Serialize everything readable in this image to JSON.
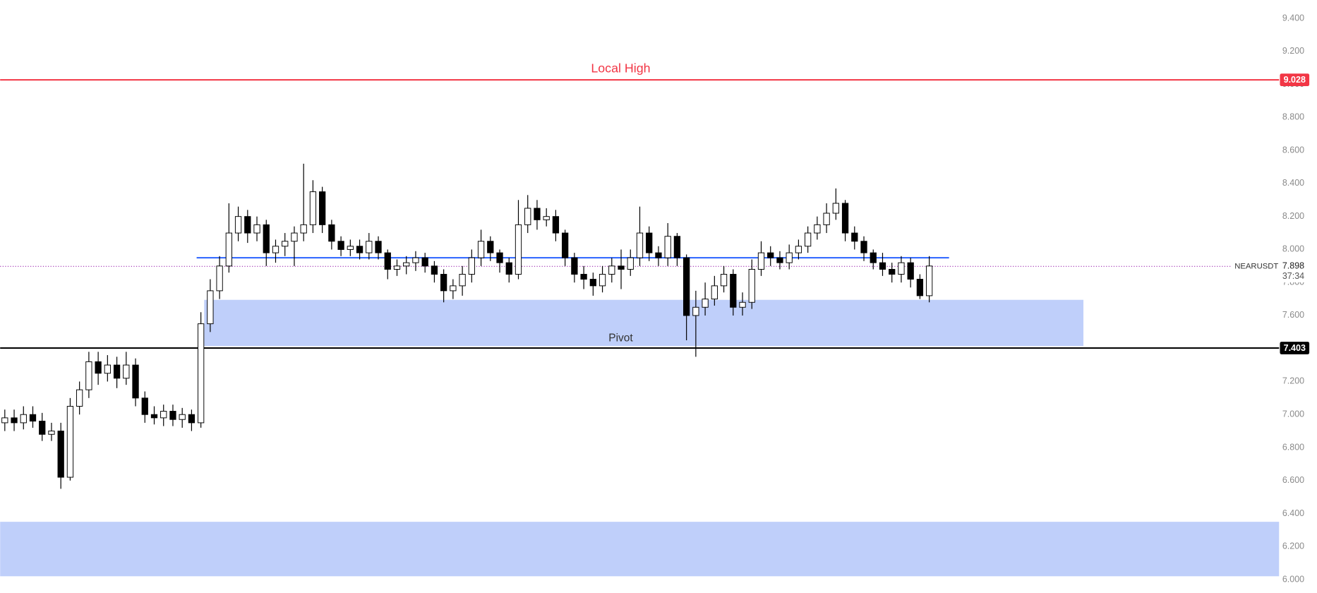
{
  "chart_data": {
    "type": "candlestick",
    "open": [
      6.95,
      6.98,
      6.95,
      7.0,
      6.96,
      6.88,
      6.9,
      6.62,
      7.05,
      7.15,
      7.32,
      7.25,
      7.3,
      7.22,
      7.3,
      7.1,
      7.0,
      6.98,
      7.02,
      6.97,
      7.0,
      6.95,
      7.55,
      7.75,
      7.9,
      8.1,
      8.2,
      8.1,
      8.15,
      7.98,
      8.02,
      8.05,
      8.1,
      8.15,
      8.35,
      8.15,
      8.05,
      8.0,
      8.02,
      7.98,
      8.05,
      7.98,
      7.88,
      7.9,
      7.92,
      7.95,
      7.9,
      7.85,
      7.75,
      7.78,
      7.85,
      7.95,
      8.05,
      7.98,
      7.92,
      7.85,
      8.15,
      8.25,
      8.18,
      8.2,
      8.1,
      7.95,
      7.85,
      7.82,
      7.78,
      7.85,
      7.9,
      7.88,
      7.95,
      8.1,
      7.98,
      7.95,
      8.08,
      7.95,
      7.6,
      7.65,
      7.7,
      7.78,
      7.85,
      7.65,
      7.68,
      7.88,
      7.98,
      7.95,
      7.92,
      7.98,
      8.02,
      8.1,
      8.15,
      8.22,
      8.28,
      8.1,
      8.05,
      7.98,
      7.92,
      7.88,
      7.85,
      7.92,
      7.82,
      7.72
    ],
    "high": [
      7.03,
      7.03,
      7.05,
      7.05,
      7.01,
      6.95,
      6.95,
      7.1,
      7.2,
      7.38,
      7.38,
      7.36,
      7.35,
      7.38,
      7.34,
      7.14,
      7.05,
      7.06,
      7.06,
      7.04,
      7.03,
      7.62,
      7.82,
      7.96,
      8.28,
      8.26,
      8.24,
      8.2,
      8.18,
      8.06,
      8.1,
      8.14,
      8.52,
      8.42,
      8.38,
      8.18,
      8.08,
      8.06,
      8.06,
      8.1,
      8.08,
      8.0,
      7.94,
      7.96,
      7.99,
      7.98,
      7.93,
      7.88,
      7.82,
      7.9,
      8.0,
      8.12,
      8.08,
      8.0,
      7.95,
      8.3,
      8.33,
      8.3,
      8.25,
      8.24,
      8.12,
      7.98,
      7.9,
      7.86,
      7.9,
      7.95,
      8.0,
      8.0,
      8.26,
      8.14,
      8.02,
      8.16,
      8.1,
      7.97,
      7.75,
      7.8,
      7.84,
      7.9,
      7.88,
      7.74,
      7.94,
      8.05,
      8.02,
      7.99,
      8.03,
      8.06,
      8.14,
      8.2,
      8.28,
      8.37,
      8.3,
      8.14,
      8.08,
      8.0,
      7.98,
      7.92,
      7.96,
      7.95,
      7.85,
      7.96
    ],
    "low": [
      6.9,
      6.9,
      6.91,
      6.92,
      6.84,
      6.84,
      6.55,
      6.6,
      7.0,
      7.1,
      7.18,
      7.2,
      7.16,
      7.18,
      7.05,
      6.95,
      6.94,
      6.93,
      6.93,
      6.92,
      6.9,
      6.92,
      7.5,
      7.7,
      7.86,
      8.05,
      8.04,
      8.05,
      7.9,
      7.92,
      7.96,
      7.9,
      8.05,
      8.1,
      8.1,
      8.0,
      7.96,
      7.96,
      7.94,
      7.94,
      7.94,
      7.82,
      7.84,
      7.85,
      7.87,
      7.86,
      7.8,
      7.68,
      7.7,
      7.72,
      7.8,
      7.9,
      7.93,
      7.86,
      7.8,
      7.82,
      8.1,
      8.12,
      8.14,
      8.05,
      7.9,
      7.8,
      7.76,
      7.72,
      7.74,
      7.8,
      7.76,
      7.84,
      7.9,
      7.93,
      7.9,
      7.9,
      7.9,
      7.45,
      7.35,
      7.6,
      7.66,
      7.74,
      7.6,
      7.6,
      7.64,
      7.84,
      7.9,
      7.88,
      7.88,
      7.94,
      7.98,
      8.06,
      8.1,
      8.18,
      8.05,
      8.0,
      7.93,
      7.88,
      7.84,
      7.8,
      7.8,
      7.77,
      7.7,
      7.68
    ],
    "close": [
      6.98,
      6.95,
      7.0,
      6.96,
      6.88,
      6.9,
      6.62,
      7.05,
      7.15,
      7.32,
      7.25,
      7.3,
      7.22,
      7.3,
      7.1,
      7.0,
      6.98,
      7.02,
      6.97,
      7.0,
      6.95,
      7.55,
      7.75,
      7.9,
      8.1,
      8.2,
      8.1,
      8.15,
      7.98,
      8.02,
      8.05,
      8.1,
      8.15,
      8.35,
      8.15,
      8.05,
      8.0,
      8.02,
      7.98,
      8.05,
      7.98,
      7.88,
      7.9,
      7.92,
      7.95,
      7.9,
      7.85,
      7.75,
      7.78,
      7.85,
      7.95,
      8.05,
      7.98,
      7.92,
      7.85,
      8.15,
      8.25,
      8.18,
      8.2,
      8.1,
      7.95,
      7.85,
      7.82,
      7.78,
      7.85,
      7.9,
      7.88,
      7.95,
      8.1,
      7.98,
      7.95,
      8.08,
      7.95,
      7.6,
      7.65,
      7.7,
      7.78,
      7.85,
      7.65,
      7.68,
      7.88,
      7.98,
      7.95,
      7.92,
      7.98,
      8.02,
      8.1,
      8.15,
      8.22,
      8.28,
      8.1,
      8.05,
      7.98,
      7.92,
      7.88,
      7.85,
      7.92,
      7.82,
      7.72,
      7.9
    ],
    "up_color": "#ffffff",
    "down_color": "#000000",
    "ylim": [
      6.0,
      9.4
    ],
    "yticks": [
      {
        "value": 6.0,
        "label": "6.000"
      },
      {
        "value": 6.2,
        "label": "6.200"
      },
      {
        "value": 6.4,
        "label": "6.400"
      },
      {
        "value": 6.6,
        "label": "6.600"
      },
      {
        "value": 6.8,
        "label": "6.800"
      },
      {
        "value": 7.0,
        "label": "7.000"
      },
      {
        "value": 7.2,
        "label": "7.200"
      },
      {
        "value": 7.4,
        "label": "7.400"
      },
      {
        "value": 7.6,
        "label": "7.600"
      },
      {
        "value": 7.8,
        "label": "7.800"
      },
      {
        "value": 8.0,
        "label": "8.000"
      },
      {
        "value": 8.2,
        "label": "8.200"
      },
      {
        "value": 8.4,
        "label": "8.400"
      },
      {
        "value": 8.6,
        "label": "8.600"
      },
      {
        "value": 8.8,
        "label": "8.800"
      },
      {
        "value": 9.0,
        "label": "9.000"
      },
      {
        "value": 9.2,
        "label": "9.200"
      },
      {
        "value": 9.4,
        "label": "9.400"
      }
    ],
    "grid": false,
    "levels": [
      {
        "name": "Local High",
        "value": 9.028,
        "color": "#f23645"
      },
      {
        "value": 7.403,
        "color": "#000000"
      },
      {
        "value": 7.95,
        "color": "#2962ff"
      }
    ],
    "zones": [
      {
        "low": 7.415,
        "high": 7.695,
        "label": "Pivot",
        "color": "#bfcffa"
      },
      {
        "low": 6.02,
        "high": 6.35,
        "color": "#bfcffa"
      }
    ],
    "last_price": {
      "symbol": "NEARUSDT",
      "value": 7.898,
      "countdown": "37:34",
      "color": "#9c27b0"
    }
  }
}
